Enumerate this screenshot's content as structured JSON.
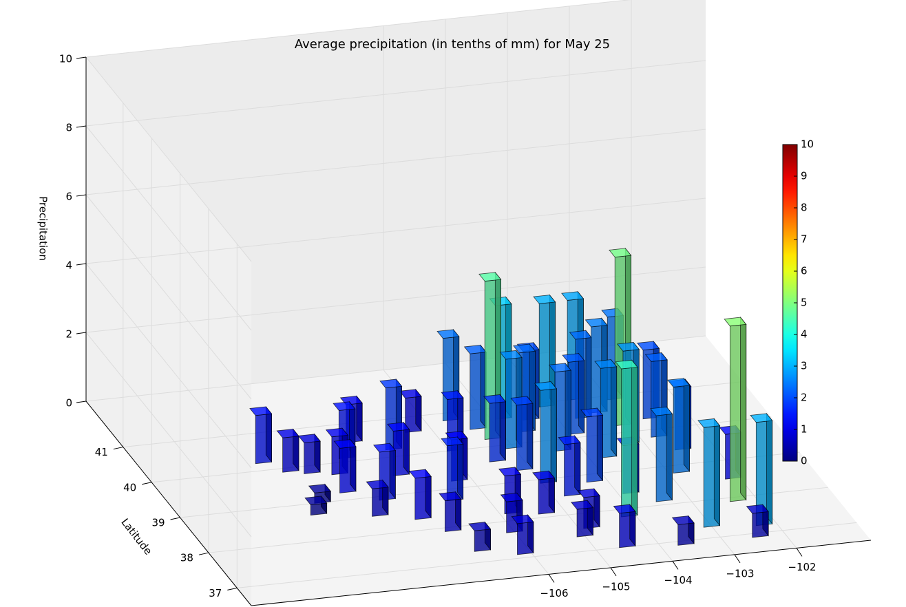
{
  "chart_data": {
    "type": "bar3d",
    "title": "Average precipitation (in tenths of mm) for May 25",
    "ylabel": "Latitude",
    "zlabel": "Precipitation",
    "x": [
      -108.9,
      -108.6,
      -108.3,
      -108.5,
      -108.7,
      -108.0,
      -107.8,
      -107.9,
      -107.6,
      -107.3,
      -107.5,
      -107.2,
      -107.0,
      -106.8,
      -106.9,
      -106.7,
      -106.5,
      -106.3,
      -106.2,
      -106.0,
      -105.9,
      -105.8,
      -106.1,
      -105.6,
      -105.3,
      -105.2,
      -105.0,
      -105.4,
      -105.1,
      -104.9,
      -104.8,
      -104.6,
      -104.7,
      -105.3,
      -105.0,
      -104.5,
      -104.3,
      -104.4,
      -104.2,
      -104.0,
      -103.9,
      -104.1,
      -103.8,
      -103.7,
      -103.6,
      -103.5,
      -103.3,
      -103.2,
      -103.1,
      -103.4,
      -103.0,
      -102.8,
      -102.9,
      -102.6,
      -102.5,
      -102.3,
      -102.2,
      -102.1,
      -102.4,
      -103.6,
      -104.8,
      -102.7
    ],
    "y": [
      40.3,
      40.0,
      39.9,
      39.1,
      38.8,
      39.3,
      38.6,
      39.8,
      40.2,
      40.6,
      39.0,
      38.4,
      39.6,
      40.3,
      38.0,
      37.4,
      38.8,
      40.7,
      39.3,
      37.8,
      40.1,
      38.3,
      37.2,
      40.9,
      40.6,
      40.3,
      40.0,
      39.7,
      39.4,
      39.0,
      40.8,
      40.4,
      38.6,
      38.2,
      37.5,
      37.1,
      39.8,
      40.7,
      38.9,
      41.0,
      40.2,
      37.9,
      38.5,
      39.5,
      40.6,
      41.1,
      40.7,
      39.8,
      40.3,
      38.2,
      37.4,
      38.9,
      41.0,
      40.4,
      39.5,
      38.0,
      37.3,
      38.6,
      37.0,
      37.0,
      37.7,
      39.9
    ],
    "values": [
      1.4,
      1.0,
      0.9,
      0.3,
      0.3,
      1.3,
      0.8,
      1.1,
      1.4,
      1.1,
      1.4,
      1.2,
      1.3,
      1.8,
      0.9,
      0.6,
      1.6,
      1.0,
      1.2,
      0.9,
      1.5,
      1.1,
      0.9,
      2.4,
      2.2,
      4.6,
      2.6,
      1.7,
      1.9,
      2.7,
      3.3,
      2.3,
      1.5,
      1.0,
      0.8,
      1.0,
      2.3,
      2.0,
      1.9,
      3.0,
      2.1,
      4.3,
      1.4,
      2.6,
      2.3,
      2.9,
      2.5,
      2.7,
      4.9,
      2.5,
      2.9,
      2.5,
      2.4,
      2.0,
      1.8,
      5.1,
      3.0,
      1.3,
      0.7,
      0.6,
      0.9,
      2.2
    ],
    "xlim": [
      -110.8,
      -100.8
    ],
    "ylim": [
      36.5,
      42.3
    ],
    "zlim": [
      0,
      10
    ],
    "xticks": [
      {
        "value": -106,
        "label": "−106"
      },
      {
        "value": -105,
        "label": "−105"
      },
      {
        "value": -104,
        "label": "−104"
      },
      {
        "value": -103,
        "label": "−103"
      },
      {
        "value": -102,
        "label": "−102"
      }
    ],
    "yticks": [
      37,
      38,
      39,
      40,
      41
    ],
    "zticks": [
      0,
      2,
      4,
      6,
      8,
      10
    ],
    "colormap": "jet",
    "clim": [
      0,
      10
    ],
    "cticks": [
      0,
      1,
      2,
      3,
      4,
      5,
      6,
      7,
      8,
      9,
      10
    ],
    "grid": true
  }
}
